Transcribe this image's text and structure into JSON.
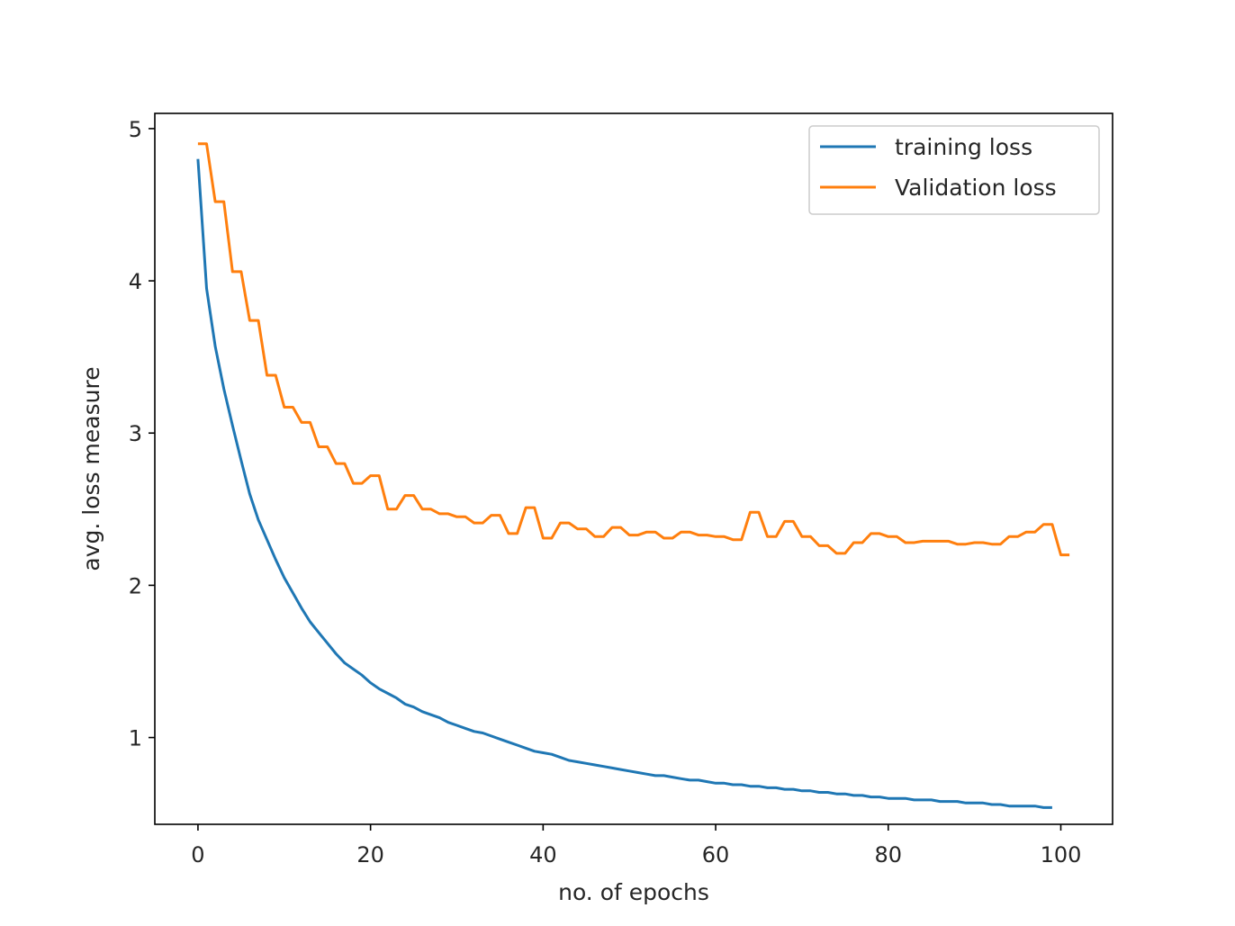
{
  "chart_data": {
    "type": "line",
    "title": "",
    "xlabel": "no. of epochs",
    "ylabel": "avg. loss measure",
    "xlim": [
      -5,
      106
    ],
    "ylim": [
      0.43,
      5.1
    ],
    "xticks": [
      0,
      20,
      40,
      60,
      80,
      100
    ],
    "yticks": [
      1,
      2,
      3,
      4,
      5
    ],
    "grid": false,
    "legend_position": "top-right",
    "series": [
      {
        "name": "training loss",
        "color": "#1f77b4",
        "x": [
          0,
          1,
          2,
          3,
          4,
          5,
          6,
          7,
          8,
          9,
          10,
          11,
          12,
          13,
          14,
          15,
          16,
          17,
          18,
          19,
          20,
          21,
          22,
          23,
          24,
          25,
          26,
          27,
          28,
          29,
          30,
          31,
          32,
          33,
          34,
          35,
          36,
          37,
          38,
          39,
          40,
          41,
          42,
          43,
          44,
          45,
          46,
          47,
          48,
          49,
          50,
          51,
          52,
          53,
          54,
          55,
          56,
          57,
          58,
          59,
          60,
          61,
          62,
          63,
          64,
          65,
          66,
          67,
          68,
          69,
          70,
          71,
          72,
          73,
          74,
          75,
          76,
          77,
          78,
          79,
          80,
          81,
          82,
          83,
          84,
          85,
          86,
          87,
          88,
          89,
          90,
          91,
          92,
          93,
          94,
          95,
          96,
          97,
          98,
          99
        ],
        "y": [
          4.8,
          3.95,
          3.57,
          3.29,
          3.05,
          2.82,
          2.6,
          2.43,
          2.3,
          2.17,
          2.05,
          1.95,
          1.85,
          1.76,
          1.69,
          1.62,
          1.55,
          1.49,
          1.45,
          1.41,
          1.36,
          1.32,
          1.29,
          1.26,
          1.22,
          1.2,
          1.17,
          1.15,
          1.13,
          1.1,
          1.08,
          1.06,
          1.04,
          1.03,
          1.01,
          0.99,
          0.97,
          0.95,
          0.93,
          0.91,
          0.9,
          0.89,
          0.87,
          0.85,
          0.84,
          0.83,
          0.82,
          0.81,
          0.8,
          0.79,
          0.78,
          0.77,
          0.76,
          0.75,
          0.75,
          0.74,
          0.73,
          0.72,
          0.72,
          0.71,
          0.7,
          0.7,
          0.69,
          0.69,
          0.68,
          0.68,
          0.67,
          0.67,
          0.66,
          0.66,
          0.65,
          0.65,
          0.64,
          0.64,
          0.63,
          0.63,
          0.62,
          0.62,
          0.61,
          0.61,
          0.6,
          0.6,
          0.6,
          0.59,
          0.59,
          0.59,
          0.58,
          0.58,
          0.58,
          0.57,
          0.57,
          0.57,
          0.56,
          0.56,
          0.55,
          0.55,
          0.55,
          0.55,
          0.54,
          0.54
        ]
      },
      {
        "name": "Validation loss",
        "color": "#ff7f0e",
        "x": [
          0,
          1,
          2,
          3,
          4,
          5,
          6,
          7,
          8,
          9,
          10,
          11,
          12,
          13,
          14,
          15,
          16,
          17,
          18,
          19,
          20,
          21,
          22,
          23,
          24,
          25,
          26,
          27,
          28,
          29,
          30,
          31,
          32,
          33,
          34,
          35,
          36,
          37,
          38,
          39,
          40,
          41,
          42,
          43,
          44,
          45,
          46,
          47,
          48,
          49,
          50,
          51,
          52,
          53,
          54,
          55,
          56,
          57,
          58,
          59,
          60,
          61,
          62,
          63,
          64,
          65,
          66,
          67,
          68,
          69,
          70,
          71,
          72,
          73,
          74,
          75,
          76,
          77,
          78,
          79,
          80,
          81,
          82,
          83,
          84,
          85,
          86,
          87,
          88,
          89,
          90,
          91,
          92,
          93,
          94,
          95,
          96,
          97,
          98,
          99,
          100,
          101
        ],
        "y": [
          4.9,
          4.9,
          4.52,
          4.52,
          4.06,
          4.06,
          3.74,
          3.74,
          3.38,
          3.38,
          3.17,
          3.17,
          3.07,
          3.07,
          2.91,
          2.91,
          2.8,
          2.8,
          2.67,
          2.67,
          2.72,
          2.72,
          2.5,
          2.5,
          2.59,
          2.59,
          2.5,
          2.5,
          2.47,
          2.47,
          2.45,
          2.45,
          2.41,
          2.41,
          2.46,
          2.46,
          2.34,
          2.34,
          2.51,
          2.51,
          2.31,
          2.31,
          2.41,
          2.41,
          2.37,
          2.37,
          2.32,
          2.32,
          2.38,
          2.38,
          2.33,
          2.33,
          2.35,
          2.35,
          2.31,
          2.31,
          2.35,
          2.35,
          2.33,
          2.33,
          2.32,
          2.32,
          2.3,
          2.3,
          2.48,
          2.48,
          2.32,
          2.32,
          2.42,
          2.42,
          2.32,
          2.32,
          2.26,
          2.26,
          2.21,
          2.21,
          2.28,
          2.28,
          2.34,
          2.34,
          2.32,
          2.32,
          2.28,
          2.28,
          2.29,
          2.29,
          2.29,
          2.29,
          2.27,
          2.27,
          2.28,
          2.28,
          2.27,
          2.27,
          2.32,
          2.32,
          2.35,
          2.35,
          2.4,
          2.4,
          2.2,
          2.2
        ]
      }
    ]
  }
}
